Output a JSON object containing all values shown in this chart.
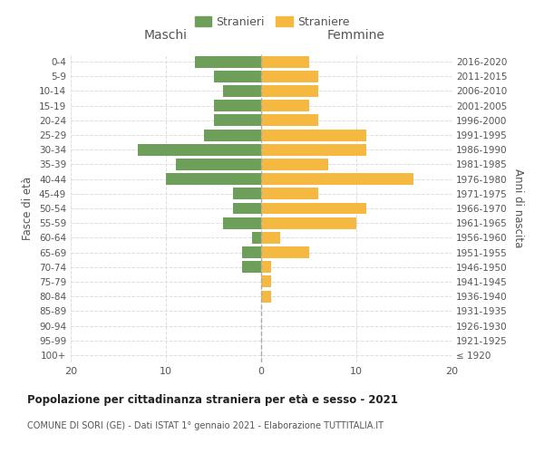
{
  "age_groups": [
    "100+",
    "95-99",
    "90-94",
    "85-89",
    "80-84",
    "75-79",
    "70-74",
    "65-69",
    "60-64",
    "55-59",
    "50-54",
    "45-49",
    "40-44",
    "35-39",
    "30-34",
    "25-29",
    "20-24",
    "15-19",
    "10-14",
    "5-9",
    "0-4"
  ],
  "birth_years": [
    "≤ 1920",
    "1921-1925",
    "1926-1930",
    "1931-1935",
    "1936-1940",
    "1941-1945",
    "1946-1950",
    "1951-1955",
    "1956-1960",
    "1961-1965",
    "1966-1970",
    "1971-1975",
    "1976-1980",
    "1981-1985",
    "1986-1990",
    "1991-1995",
    "1996-2000",
    "2001-2005",
    "2006-2010",
    "2011-2015",
    "2016-2020"
  ],
  "maschi": [
    0,
    0,
    0,
    0,
    0,
    0,
    2,
    2,
    1,
    4,
    3,
    3,
    10,
    9,
    13,
    6,
    5,
    5,
    4,
    5,
    7
  ],
  "femmine": [
    0,
    0,
    0,
    0,
    1,
    1,
    1,
    5,
    2,
    10,
    11,
    6,
    16,
    7,
    11,
    11,
    6,
    5,
    6,
    6,
    5
  ],
  "color_maschi": "#6d9e5a",
  "color_femmine": "#f5b942",
  "title": "Popolazione per cittadinanza straniera per età e sesso - 2021",
  "subtitle": "COMUNE DI SORI (GE) - Dati ISTAT 1° gennaio 2021 - Elaborazione TUTTITALIA.IT",
  "xlabel_left": "Maschi",
  "xlabel_right": "Femmine",
  "ylabel_left": "Fasce di età",
  "ylabel_right": "Anni di nascita",
  "legend_maschi": "Stranieri",
  "legend_femmine": "Straniere",
  "xlim": 20,
  "bg_color": "#ffffff",
  "grid_color": "#dddddd",
  "bar_height": 0.8
}
